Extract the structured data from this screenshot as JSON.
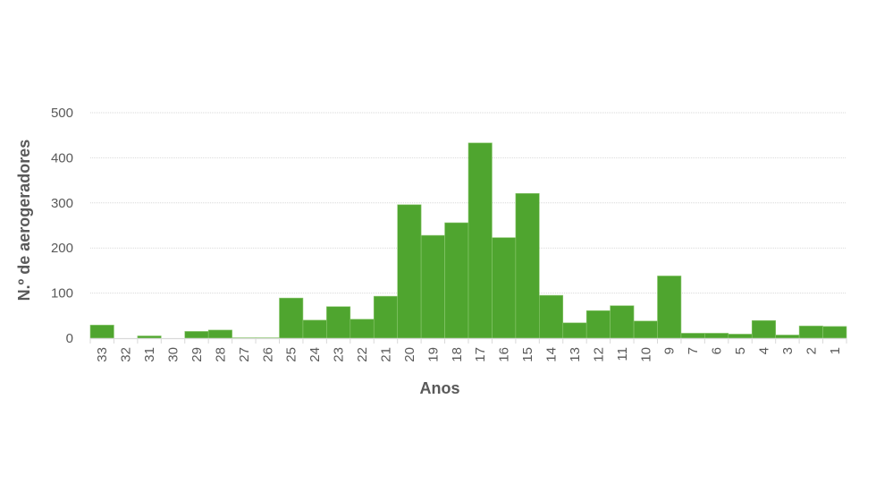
{
  "chart_data": {
    "type": "bar",
    "title": "",
    "xlabel": "Anos",
    "ylabel": "N.º de aerogeradores",
    "ylim": [
      0,
      500
    ],
    "yticks": [
      0,
      100,
      200,
      300,
      400,
      500
    ],
    "grid": true,
    "legend": null,
    "bar_color": "#4fa52f",
    "categories": [
      "33",
      "32",
      "31",
      "30",
      "29",
      "28",
      "27",
      "26",
      "25",
      "24",
      "23",
      "22",
      "21",
      "20",
      "19",
      "18",
      "17",
      "16",
      "15",
      "14",
      "13",
      "12",
      "11",
      "10",
      "9",
      "7",
      "6",
      "5",
      "4",
      "3",
      "2",
      "1"
    ],
    "values": [
      29,
      0,
      5,
      0,
      15,
      18,
      1,
      1,
      89,
      40,
      70,
      42,
      93,
      296,
      228,
      256,
      433,
      223,
      321,
      95,
      34,
      61,
      72,
      38,
      138,
      11,
      11,
      9,
      39,
      7,
      27,
      26
    ]
  }
}
